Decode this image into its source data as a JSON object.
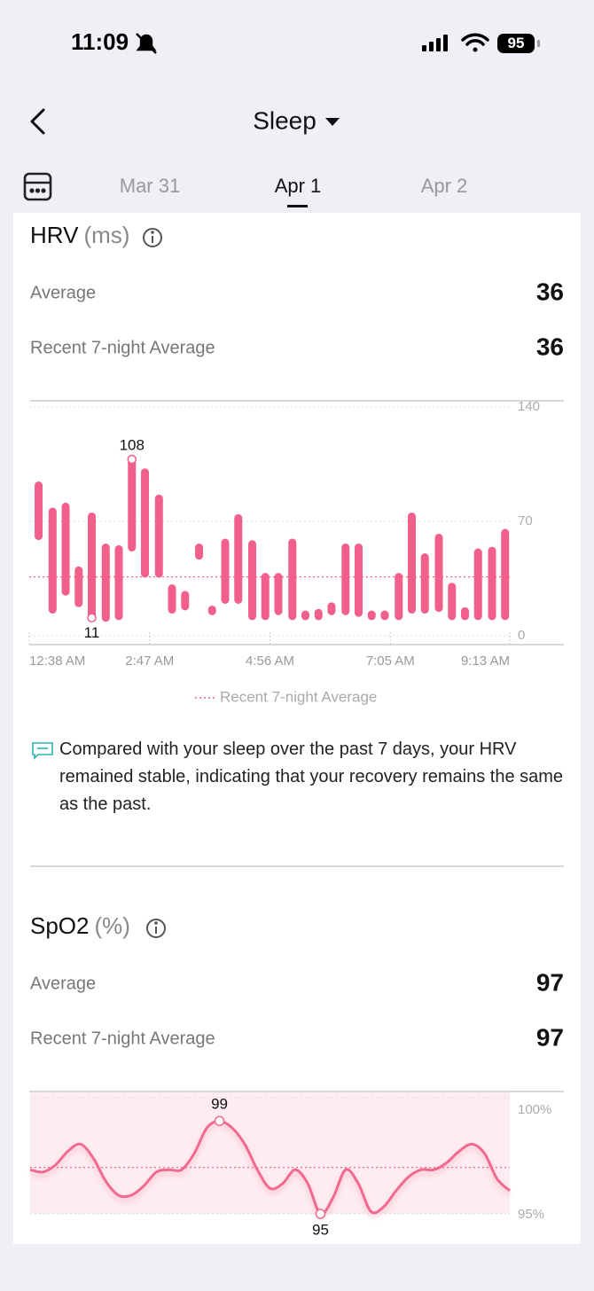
{
  "status_bar": {
    "time": "11:09",
    "battery": "95"
  },
  "header": {
    "title": "Sleep",
    "dates": [
      "Mar 31",
      "Apr 1",
      "Apr 2"
    ]
  },
  "hrv": {
    "title": "HRV",
    "unit": "(ms)",
    "average_label": "Average",
    "average": 36,
    "recent_label": "Recent 7-night Average",
    "recent": 36,
    "tip": "Compared with your sleep over the past 7 days, your HRV remained stable, indicating that your recovery remains the same as the past."
  },
  "spo2": {
    "title": "SpO2",
    "unit": "(%)",
    "average_label": "Average",
    "average": 97,
    "recent_label": "Recent 7-night Average",
    "recent": 97
  },
  "chart_data": [
    {
      "type": "range_bar",
      "x": [
        10,
        25,
        39,
        53,
        67,
        82,
        96,
        110,
        124,
        139,
        153,
        167,
        182,
        196,
        210,
        224,
        239,
        253,
        267,
        282,
        296,
        310,
        324,
        339,
        353,
        367,
        381,
        396,
        410,
        424,
        439,
        453,
        467,
        481,
        496,
        510
      ],
      "series": [
        {
          "color": "#f0608a",
          "low": [
            61,
            16,
            27,
            20,
            11,
            11,
            12,
            54,
            38,
            38,
            16,
            18,
            49,
            15,
            22,
            22,
            12,
            12,
            15,
            12,
            12,
            12,
            15,
            15,
            14,
            12,
            12,
            12,
            16,
            16,
            17,
            12,
            12,
            12,
            12,
            12
          ],
          "high": [
            92,
            76,
            79,
            40,
            73,
            54,
            53,
            108,
            100,
            84,
            29,
            25,
            54,
            16,
            57,
            72,
            56,
            36,
            36,
            57,
            13,
            14,
            18,
            54,
            54,
            13,
            13,
            36,
            73,
            48,
            60,
            30,
            15,
            51,
            52,
            63
          ]
        }
      ],
      "xlim": [
        0,
        515
      ],
      "xticks": [
        {
          "value": 0,
          "label": "12:38 AM"
        },
        {
          "value": 129,
          "label": "2:47 AM"
        },
        {
          "value": 258,
          "label": "4:56 AM"
        },
        {
          "value": 387,
          "label": "7:05 AM"
        },
        {
          "value": 515,
          "label": "9:13 AM"
        }
      ],
      "ylim": [
        0,
        140
      ],
      "yticks": [
        0,
        70,
        140
      ],
      "grid": true,
      "reference": {
        "name": "Recent 7-night Average",
        "value": 36
      },
      "mark_extremes": true
    },
    {
      "type": "line",
      "values": [
        96.9,
        96.8,
        97.1,
        97.7,
        98.0,
        97.4,
        96.4,
        95.8,
        95.8,
        96.2,
        96.8,
        96.9,
        96.9,
        97.6,
        98.7,
        99,
        98.7,
        98.0,
        96.9,
        96.1,
        96.3,
        96.9,
        96.3,
        95,
        95.7,
        96.9,
        96.3,
        95.1,
        95.3,
        96.0,
        96.6,
        96.9,
        96.9,
        97.2,
        97.7,
        98.0,
        97.6,
        96.5,
        96.0
      ],
      "color": "#f06a8e",
      "fill": "#fdecf0",
      "ylim": [
        95,
        100
      ],
      "yticks": [
        {
          "value": 100,
          "label": "100%"
        },
        {
          "value": 95,
          "label": "95%"
        }
      ],
      "grid": true,
      "reference": {
        "value": 97
      },
      "mark_extremes": true
    }
  ]
}
